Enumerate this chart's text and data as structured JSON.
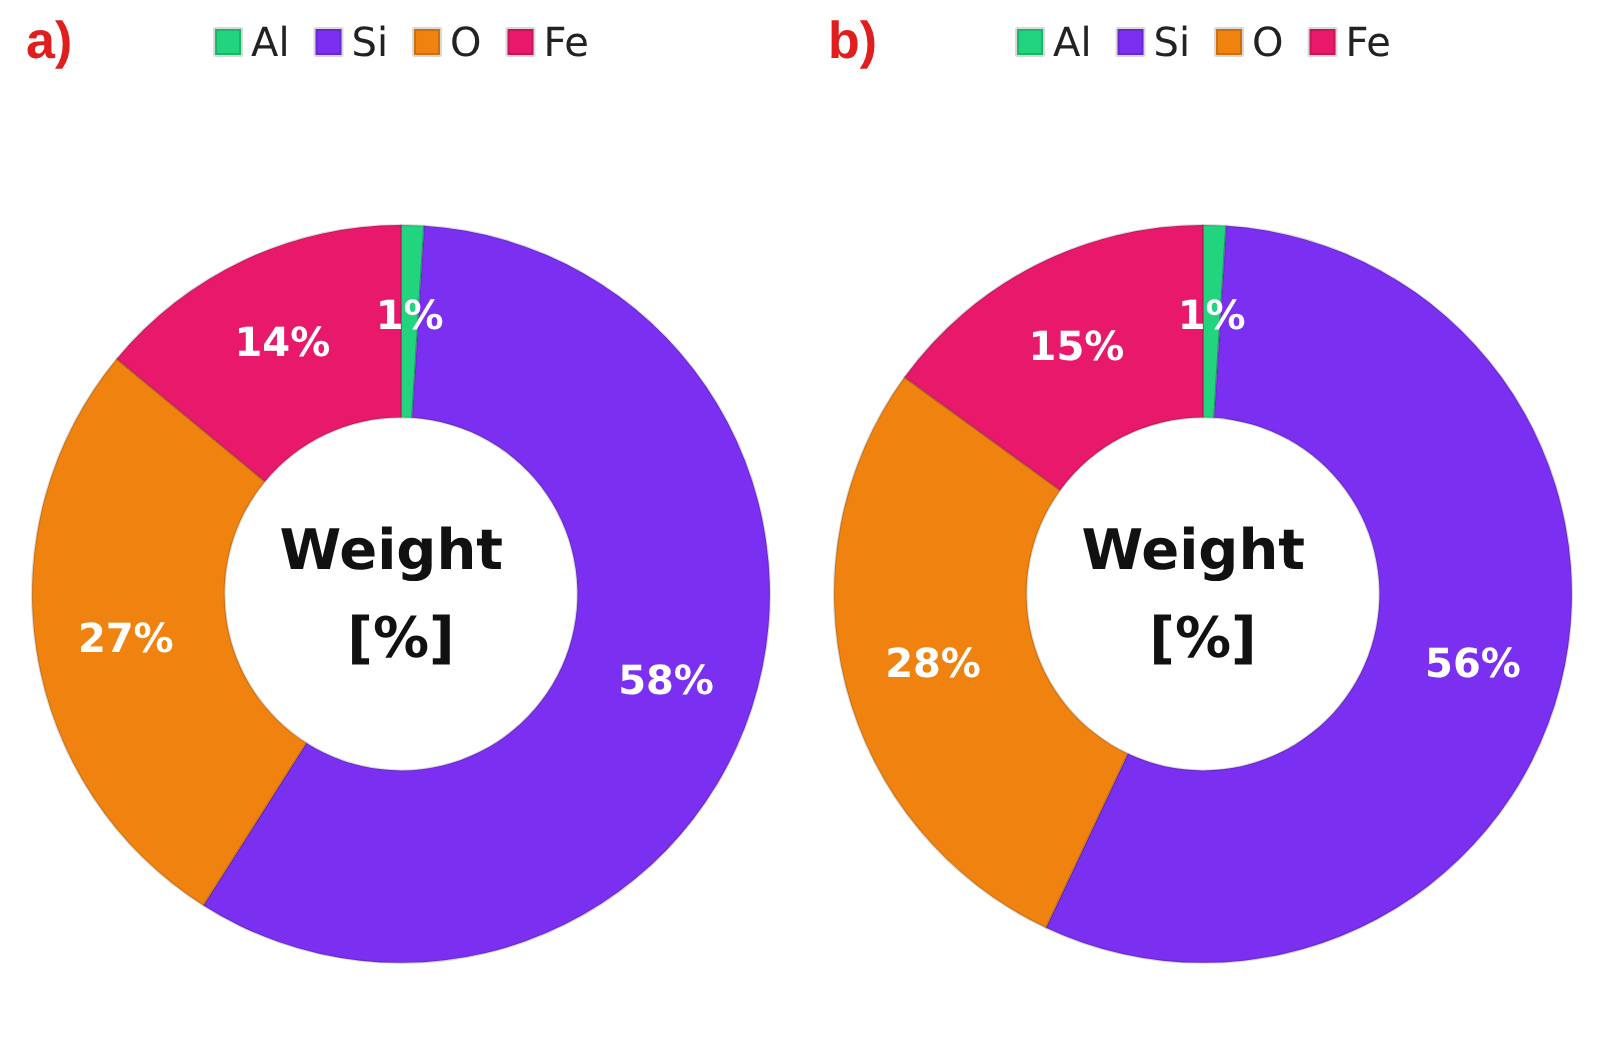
{
  "chart_data": [
    {
      "type": "donut",
      "title": "a)",
      "categories": [
        "Al",
        "Si",
        "O",
        "Fe"
      ],
      "values": [
        1,
        58,
        27,
        14
      ],
      "colors": [
        "#22d47e",
        "#7b2ff0",
        "#f0820f",
        "#e8196b"
      ],
      "value_labels": [
        "1%",
        "58%",
        "27%",
        "14%"
      ],
      "legend": "top",
      "annotations": [
        "Weight [%]"
      ]
    },
    {
      "type": "donut",
      "title": "b)",
      "categories": [
        "Al",
        "Si",
        "O",
        "Fe"
      ],
      "values": [
        1,
        56,
        28,
        15
      ],
      "colors": [
        "#22d47e",
        "#7b2ff0",
        "#f0820f",
        "#e8196b"
      ],
      "value_labels": [
        "1%",
        "56%",
        "28%",
        "15%"
      ],
      "legend": "top",
      "annotations": [
        "Weight [%]"
      ]
    }
  ]
}
